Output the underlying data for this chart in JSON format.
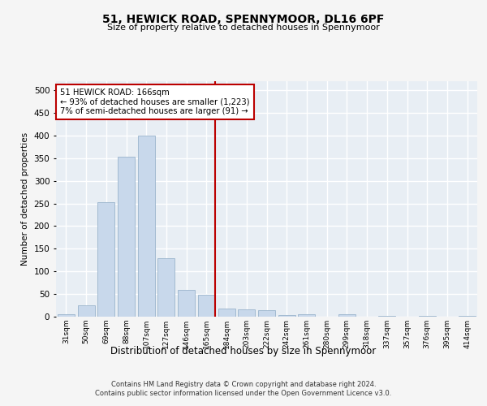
{
  "title": "51, HEWICK ROAD, SPENNYMOOR, DL16 6PF",
  "subtitle": "Size of property relative to detached houses in Spennymoor",
  "xlabel": "Distribution of detached houses by size in Spennymoor",
  "ylabel": "Number of detached properties",
  "categories": [
    "31sqm",
    "50sqm",
    "69sqm",
    "88sqm",
    "107sqm",
    "127sqm",
    "146sqm",
    "165sqm",
    "184sqm",
    "203sqm",
    "222sqm",
    "242sqm",
    "261sqm",
    "280sqm",
    "299sqm",
    "318sqm",
    "337sqm",
    "357sqm",
    "376sqm",
    "395sqm",
    "414sqm"
  ],
  "values": [
    5,
    25,
    253,
    353,
    400,
    130,
    60,
    48,
    18,
    17,
    15,
    3,
    5,
    0,
    5,
    0,
    2,
    0,
    1,
    0,
    1
  ],
  "bar_color": "#c8d8eb",
  "bar_edge_color": "#9ab4cc",
  "highlight_index": 7,
  "highlight_color": "#bb0000",
  "annotation_title": "51 HEWICK ROAD: 166sqm",
  "annotation_line1": "← 93% of detached houses are smaller (1,223)",
  "annotation_line2": "7% of semi-detached houses are larger (91) →",
  "ylim": [
    0,
    520
  ],
  "yticks": [
    0,
    50,
    100,
    150,
    200,
    250,
    300,
    350,
    400,
    450,
    500
  ],
  "background_color": "#e8eef4",
  "fig_background": "#f5f5f5",
  "grid_color": "#ffffff",
  "footer_line1": "Contains HM Land Registry data © Crown copyright and database right 2024.",
  "footer_line2": "Contains public sector information licensed under the Open Government Licence v3.0."
}
